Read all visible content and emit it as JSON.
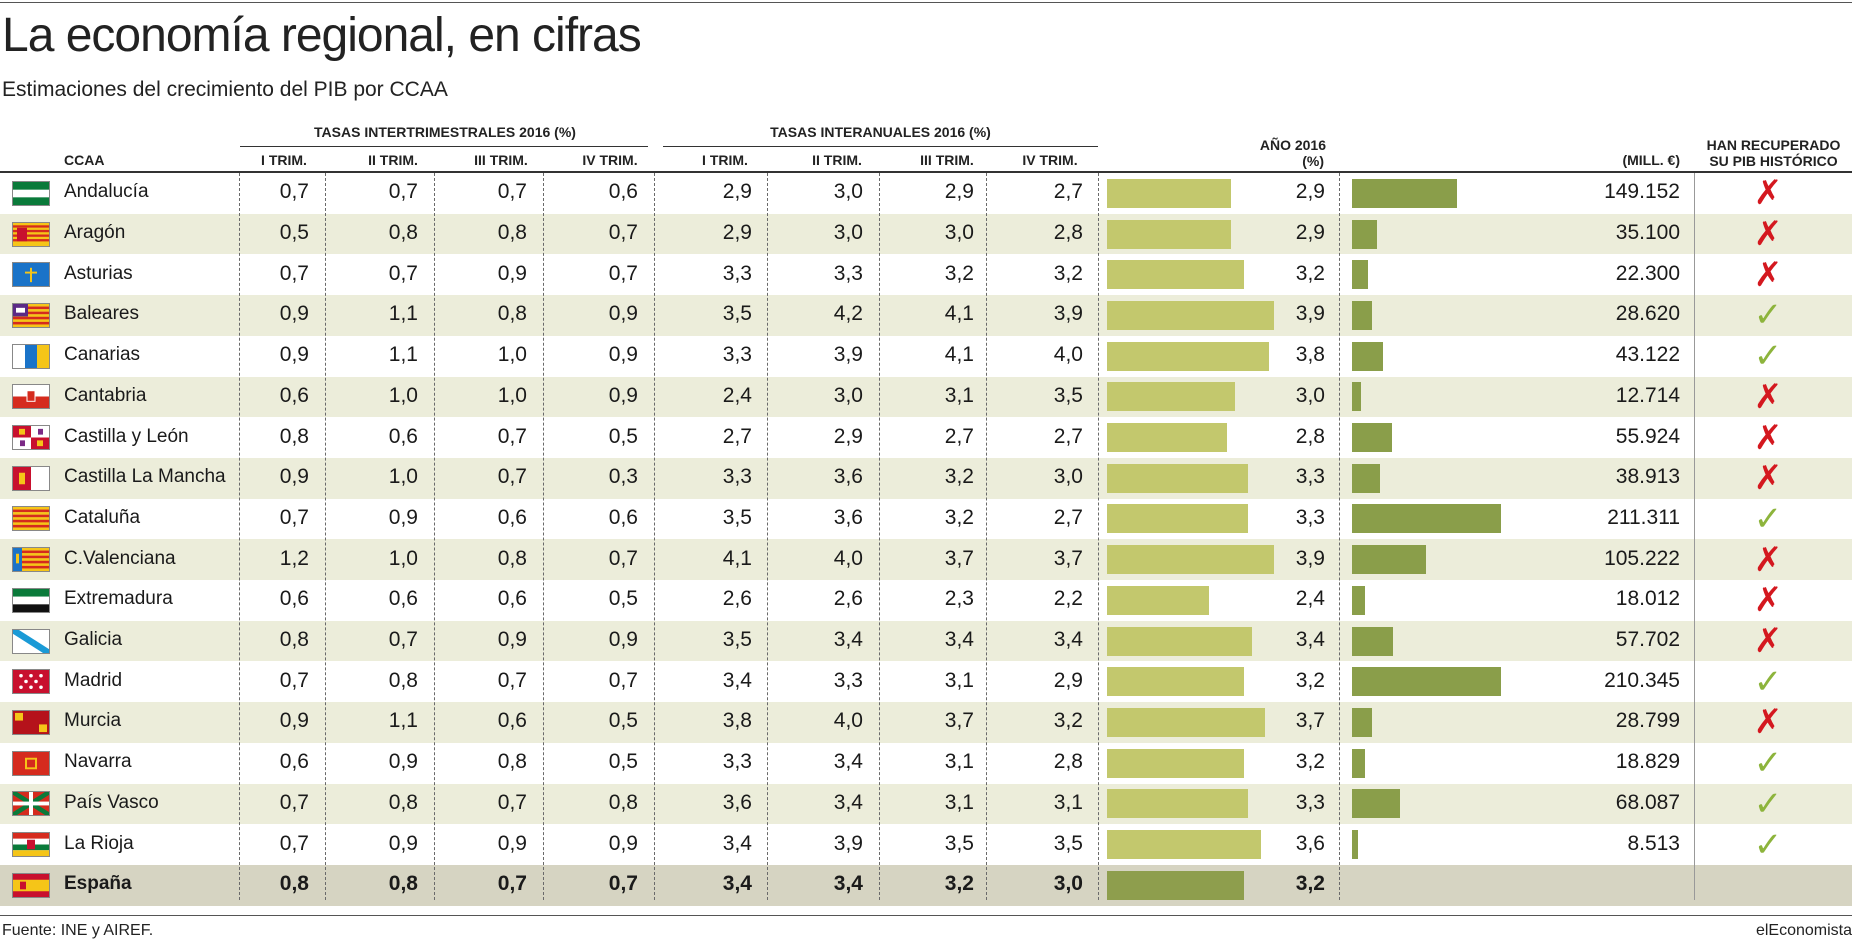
{
  "title": "La economía regional, en cifras",
  "subtitle": "Estimaciones del crecimiento del PIB por CCAA",
  "headers": {
    "group_inter": "TASAS INTERTRIMESTRALES 2016 (%)",
    "group_interanual": "TASAS INTERANUALES 2016 (%)",
    "ccaa": "CCAA",
    "q1": "I TRIM.",
    "q2": "II TRIM.",
    "q3": "III TRIM.",
    "q4": "IV TRIM.",
    "year_l1": "AÑO 2016",
    "year_l2": "(%)",
    "mill": "(MILL. €)",
    "recovered_l1": "HAN RECUPERADO",
    "recovered_l2": "SU PIB HISTÓRICO"
  },
  "colors": {
    "bar_year": "#c3c86d",
    "bar_pib": "#8a9e4a",
    "cross": "#d4181f",
    "check": "#8db43c",
    "alt_row": "#ecedda",
    "total_row": "#d6d4c2"
  },
  "chart_data": {
    "type": "table",
    "columns": [
      "CCAA",
      "Intertrimestral I",
      "Intertrimestral II",
      "Intertrimestral III",
      "Intertrimestral IV",
      "Interanual I",
      "Interanual II",
      "Interanual III",
      "Interanual IV",
      "Año 2016 (%)",
      "PIB (Mill. €)",
      "Han recuperado su PIB histórico"
    ],
    "year_bar_max": 4.1,
    "pib_bar_max": 215000,
    "rows": [
      {
        "name": "Andalucía",
        "flag": "andalucia",
        "inter": [
          "0,7",
          "0,7",
          "0,7",
          "0,6"
        ],
        "interanual": [
          "2,9",
          "3,0",
          "2,9",
          "2,7"
        ],
        "year": "2,9",
        "year_value": 2.9,
        "pib": "149.152",
        "pib_value": 149152,
        "recovered": false
      },
      {
        "name": "Aragón",
        "flag": "aragon",
        "inter": [
          "0,5",
          "0,8",
          "0,8",
          "0,7"
        ],
        "interanual": [
          "2,9",
          "3,0",
          "3,0",
          "2,8"
        ],
        "year": "2,9",
        "year_value": 2.9,
        "pib": "35.100",
        "pib_value": 35100,
        "recovered": false
      },
      {
        "name": "Asturias",
        "flag": "asturias",
        "inter": [
          "0,7",
          "0,7",
          "0,9",
          "0,7"
        ],
        "interanual": [
          "3,3",
          "3,3",
          "3,2",
          "3,2"
        ],
        "year": "3,2",
        "year_value": 3.2,
        "pib": "22.300",
        "pib_value": 22300,
        "recovered": false
      },
      {
        "name": "Baleares",
        "flag": "baleares",
        "inter": [
          "0,9",
          "1,1",
          "0,8",
          "0,9"
        ],
        "interanual": [
          "3,5",
          "4,2",
          "4,1",
          "3,9"
        ],
        "year": "3,9",
        "year_value": 3.9,
        "pib": "28.620",
        "pib_value": 28620,
        "recovered": true
      },
      {
        "name": "Canarias",
        "flag": "canarias",
        "inter": [
          "0,9",
          "1,1",
          "1,0",
          "0,9"
        ],
        "interanual": [
          "3,3",
          "3,9",
          "4,1",
          "4,0"
        ],
        "year": "3,8",
        "year_value": 3.8,
        "pib": "43.122",
        "pib_value": 43122,
        "recovered": true
      },
      {
        "name": "Cantabria",
        "flag": "cantabria",
        "inter": [
          "0,6",
          "1,0",
          "1,0",
          "0,9"
        ],
        "interanual": [
          "2,4",
          "3,0",
          "3,1",
          "3,5"
        ],
        "year": "3,0",
        "year_value": 3.0,
        "pib": "12.714",
        "pib_value": 12714,
        "recovered": false
      },
      {
        "name": "Castilla y León",
        "flag": "cyl",
        "inter": [
          "0,8",
          "0,6",
          "0,7",
          "0,5"
        ],
        "interanual": [
          "2,7",
          "2,9",
          "2,7",
          "2,7"
        ],
        "year": "2,8",
        "year_value": 2.8,
        "pib": "55.924",
        "pib_value": 55924,
        "recovered": false
      },
      {
        "name": "Castilla La Mancha",
        "flag": "clm",
        "inter": [
          "0,9",
          "1,0",
          "0,7",
          "0,3"
        ],
        "interanual": [
          "3,3",
          "3,6",
          "3,2",
          "3,0"
        ],
        "year": "3,3",
        "year_value": 3.3,
        "pib": "38.913",
        "pib_value": 38913,
        "recovered": false
      },
      {
        "name": "Cataluña",
        "flag": "cataluna",
        "inter": [
          "0,7",
          "0,9",
          "0,6",
          "0,6"
        ],
        "interanual": [
          "3,5",
          "3,6",
          "3,2",
          "2,7"
        ],
        "year": "3,3",
        "year_value": 3.3,
        "pib": "211.311",
        "pib_value": 211311,
        "recovered": true
      },
      {
        "name": "C.Valenciana",
        "flag": "valencia",
        "inter": [
          "1,2",
          "1,0",
          "0,8",
          "0,7"
        ],
        "interanual": [
          "4,1",
          "4,0",
          "3,7",
          "3,7"
        ],
        "year": "3,9",
        "year_value": 3.9,
        "pib": "105.222",
        "pib_value": 105222,
        "recovered": false
      },
      {
        "name": "Extremadura",
        "flag": "extremadura",
        "inter": [
          "0,6",
          "0,6",
          "0,6",
          "0,5"
        ],
        "interanual": [
          "2,6",
          "2,6",
          "2,3",
          "2,2"
        ],
        "year": "2,4",
        "year_value": 2.4,
        "pib": "18.012",
        "pib_value": 18012,
        "recovered": false
      },
      {
        "name": "Galicia",
        "flag": "galicia",
        "inter": [
          "0,8",
          "0,7",
          "0,9",
          "0,9"
        ],
        "interanual": [
          "3,5",
          "3,4",
          "3,4",
          "3,4"
        ],
        "year": "3,4",
        "year_value": 3.4,
        "pib": "57.702",
        "pib_value": 57702,
        "recovered": false
      },
      {
        "name": "Madrid",
        "flag": "madrid",
        "inter": [
          "0,7",
          "0,8",
          "0,7",
          "0,7"
        ],
        "interanual": [
          "3,4",
          "3,3",
          "3,1",
          "2,9"
        ],
        "year": "3,2",
        "year_value": 3.2,
        "pib": "210.345",
        "pib_value": 210345,
        "recovered": true
      },
      {
        "name": "Murcia",
        "flag": "murcia",
        "inter": [
          "0,9",
          "1,1",
          "0,6",
          "0,5"
        ],
        "interanual": [
          "3,8",
          "4,0",
          "3,7",
          "3,2"
        ],
        "year": "3,7",
        "year_value": 3.7,
        "pib": "28.799",
        "pib_value": 28799,
        "recovered": false
      },
      {
        "name": "Navarra",
        "flag": "navarra",
        "inter": [
          "0,6",
          "0,9",
          "0,8",
          "0,5"
        ],
        "interanual": [
          "3,3",
          "3,4",
          "3,1",
          "2,8"
        ],
        "year": "3,2",
        "year_value": 3.2,
        "pib": "18.829",
        "pib_value": 18829,
        "recovered": true
      },
      {
        "name": "País Vasco",
        "flag": "paisvasco",
        "inter": [
          "0,7",
          "0,8",
          "0,7",
          "0,8"
        ],
        "interanual": [
          "3,6",
          "3,4",
          "3,1",
          "3,1"
        ],
        "year": "3,3",
        "year_value": 3.3,
        "pib": "68.087",
        "pib_value": 68087,
        "recovered": true
      },
      {
        "name": "La Rioja",
        "flag": "rioja",
        "inter": [
          "0,7",
          "0,9",
          "0,9",
          "0,9"
        ],
        "interanual": [
          "3,4",
          "3,9",
          "3,5",
          "3,5"
        ],
        "year": "3,6",
        "year_value": 3.6,
        "pib": "8.513",
        "pib_value": 8513,
        "recovered": true
      },
      {
        "name": "España",
        "flag": "espana",
        "total": true,
        "inter": [
          "0,8",
          "0,8",
          "0,7",
          "0,7"
        ],
        "interanual": [
          "3,4",
          "3,4",
          "3,2",
          "3,0"
        ],
        "year": "3,2",
        "year_value": 3.2,
        "pib": "",
        "pib_value": null,
        "recovered": null
      }
    ]
  },
  "footer": {
    "source": "Fuente: INE y AIREF.",
    "brand": "elEconomista"
  }
}
